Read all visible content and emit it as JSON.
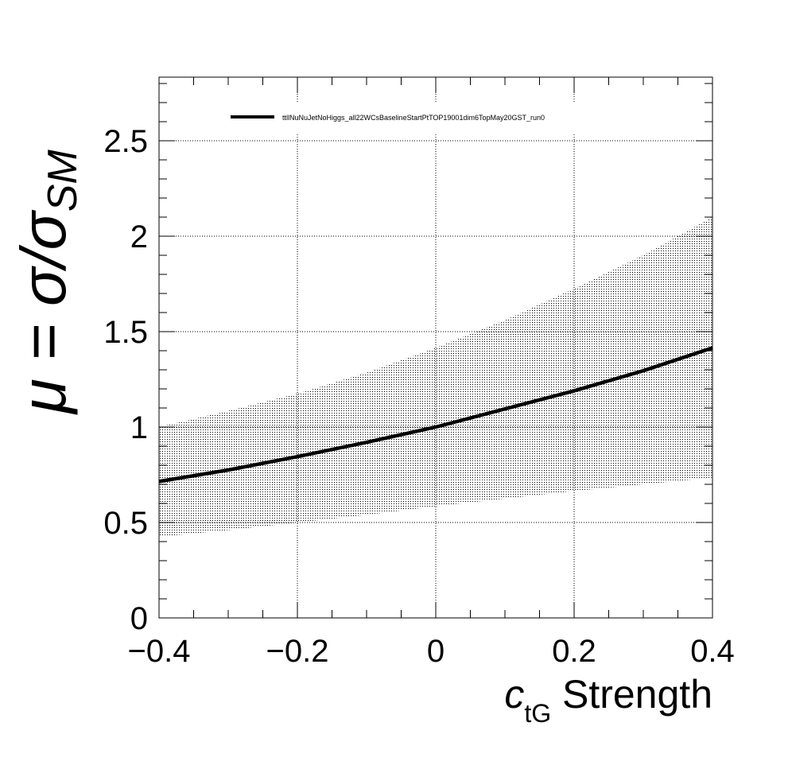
{
  "chart_data": {
    "type": "line",
    "title": "",
    "xlabel": {
      "prefix": "c",
      "subscript": "tG",
      "suffix": " Strength"
    },
    "ylabel": {
      "main": "μ = σ/σ",
      "subscript": "SM"
    },
    "xlim": [
      -0.4,
      0.4
    ],
    "ylim": [
      0,
      2.8333
    ],
    "x_ticks": [
      -0.4,
      -0.2,
      0,
      0.2,
      0.4
    ],
    "x_tick_labels": [
      "−0.4",
      "−0.2",
      "0",
      "0.2",
      "0.4"
    ],
    "y_ticks": [
      0,
      0.5,
      1,
      1.5,
      2,
      2.5
    ],
    "y_tick_labels": [
      "0",
      "0.5",
      "1",
      "1.5",
      "2",
      "2.5"
    ],
    "grid": true,
    "legend_position": "top",
    "series": [
      {
        "name": "ttllNuNuJetNoHiggs_all22WCsBaselineStartPtTOP19001dim6TopMay20GST_run0",
        "color": "#000000",
        "x": [
          -0.4,
          -0.3,
          -0.2,
          -0.1,
          0,
          0.1,
          0.2,
          0.3,
          0.4
        ],
        "y": [
          0.715,
          0.775,
          0.845,
          0.92,
          1.0,
          1.095,
          1.19,
          1.295,
          1.415
        ]
      }
    ],
    "band": {
      "x": [
        -0.4,
        -0.3,
        -0.2,
        -0.1,
        0,
        0.1,
        0.2,
        0.3,
        0.4
      ],
      "lower": [
        0.425,
        0.46,
        0.5,
        0.54,
        0.585,
        0.625,
        0.665,
        0.7,
        0.735
      ],
      "upper": [
        1.0,
        1.085,
        1.175,
        1.285,
        1.415,
        1.56,
        1.725,
        1.9,
        2.1
      ]
    }
  }
}
